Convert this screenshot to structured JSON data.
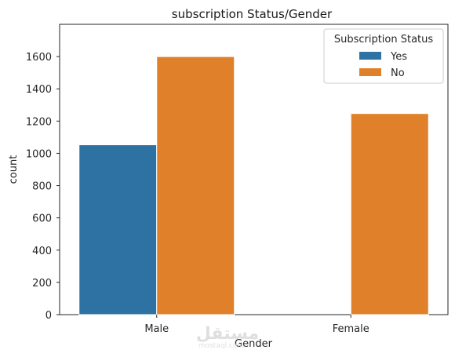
{
  "chart_data": {
    "type": "bar",
    "title": "subscription Status/Gender",
    "xlabel": "Gender",
    "ylabel": "count",
    "categories": [
      "Male",
      "Female"
    ],
    "series": [
      {
        "name": "Yes",
        "values": [
          1053,
          0
        ],
        "color": "#2e72a4"
      },
      {
        "name": "No",
        "values": [
          1600,
          1247
        ],
        "color": "#e0802b"
      }
    ],
    "ylim": [
      0,
      1800
    ],
    "yticks": [
      0,
      200,
      400,
      600,
      800,
      1000,
      1200,
      1400,
      1600
    ],
    "grid": false,
    "legend": {
      "title": "Subscription Status",
      "placement": "top-right"
    }
  },
  "watermark": {
    "text": "مستقل",
    "subtext": "mostaql.com"
  }
}
